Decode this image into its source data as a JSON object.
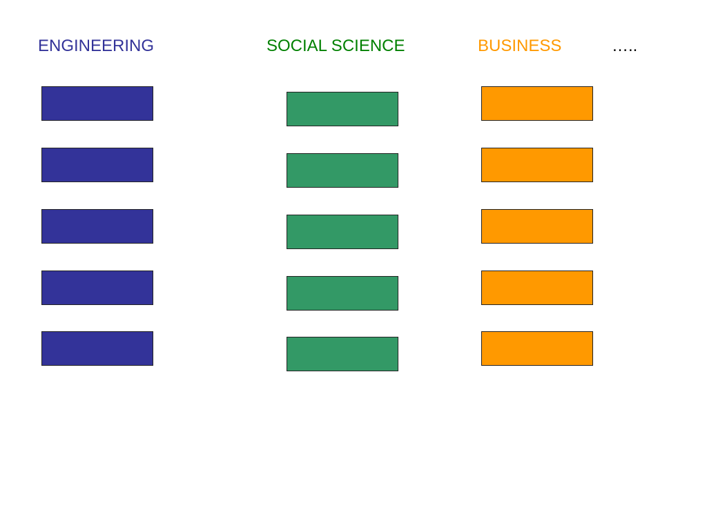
{
  "columns": [
    {
      "key": "eng",
      "label": "ENGINEERING",
      "color": "#333399",
      "box_count": 5
    },
    {
      "key": "soc",
      "label": "SOCIAL SCIENCE",
      "color": "#339966",
      "box_count": 5
    },
    {
      "key": "bus",
      "label": "BUSINESS",
      "color": "#ff9900",
      "box_count": 5
    }
  ],
  "heading_colors": {
    "eng": "#333399",
    "soc": "#008000",
    "bus": "#ff9900"
  },
  "ellipsis": "….."
}
